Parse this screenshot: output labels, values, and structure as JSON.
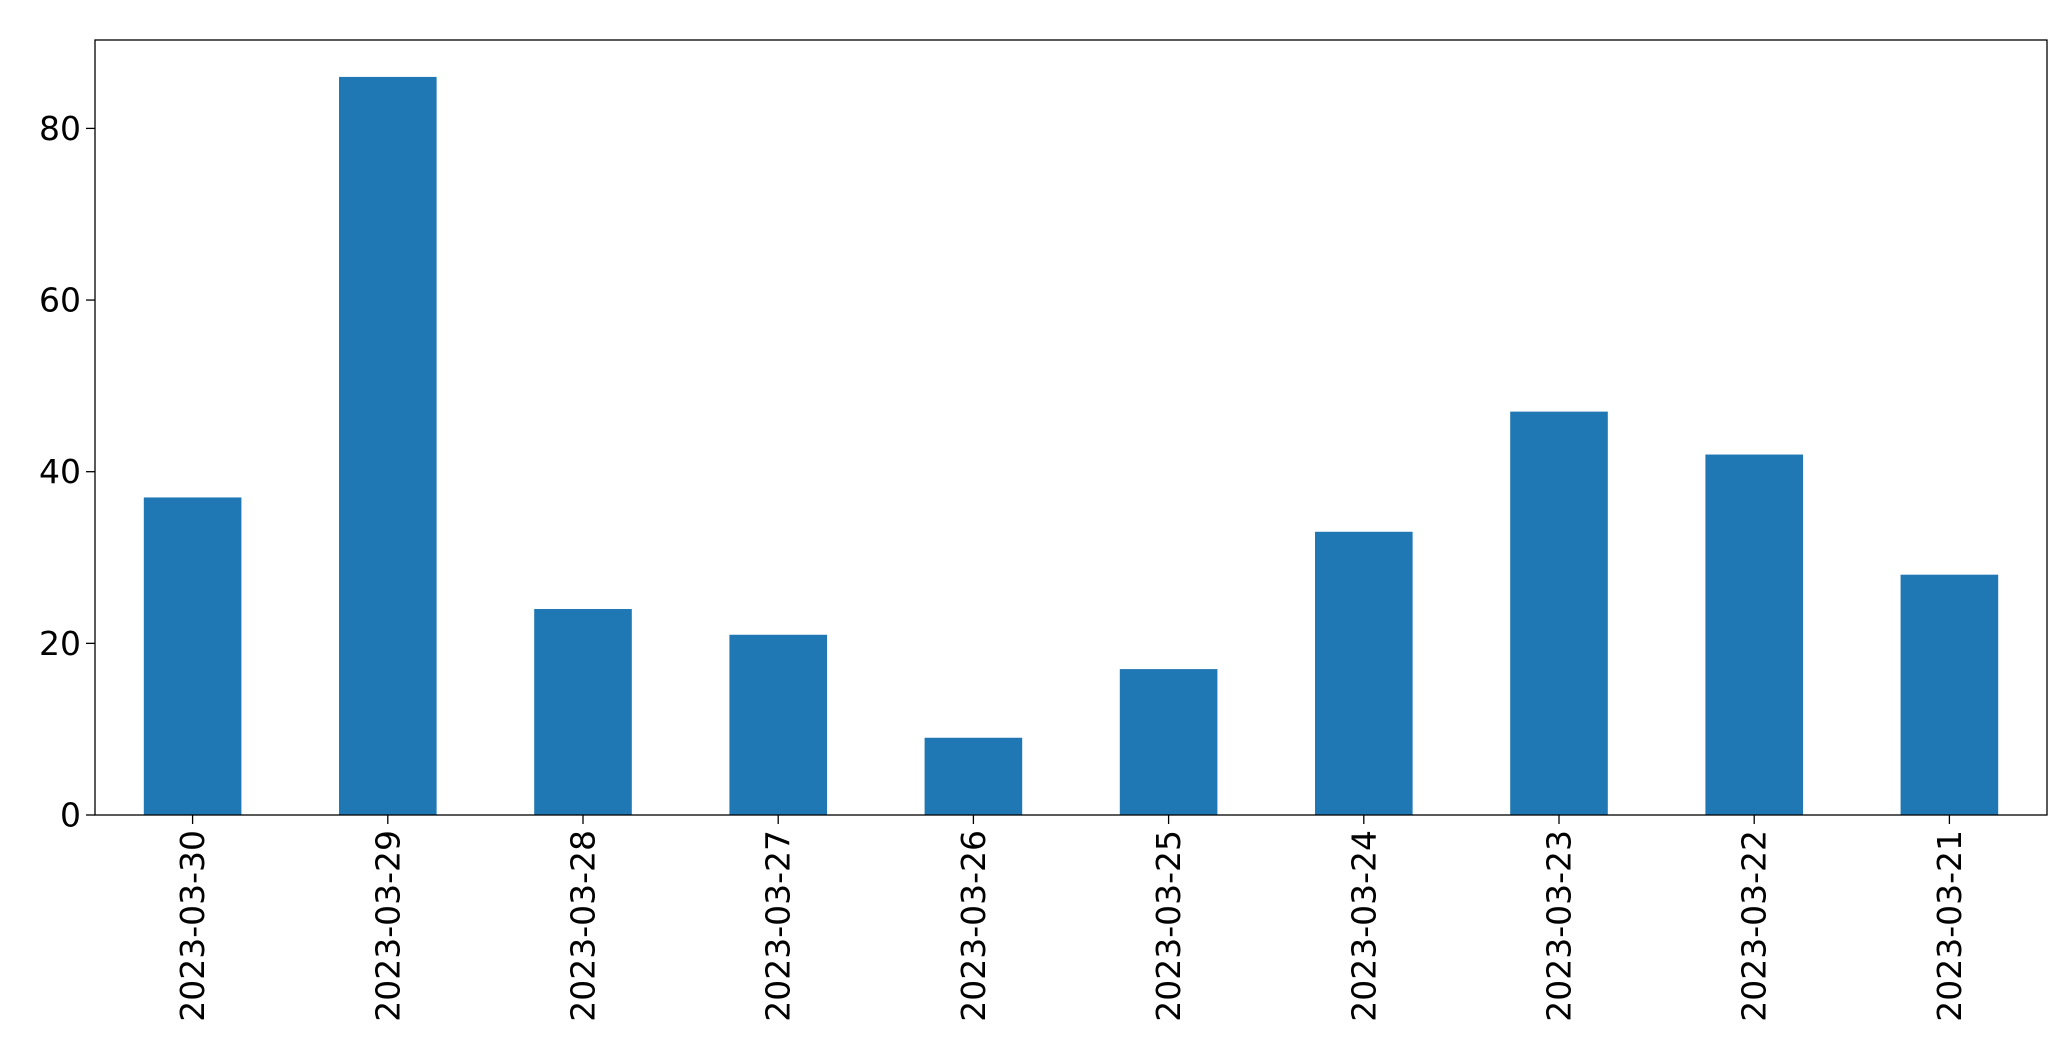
{
  "chart_data": {
    "type": "bar",
    "categories": [
      "2023-03-30",
      "2023-03-29",
      "2023-03-28",
      "2023-03-27",
      "2023-03-26",
      "2023-03-25",
      "2023-03-24",
      "2023-03-23",
      "2023-03-22",
      "2023-03-21"
    ],
    "values": [
      37,
      86,
      24,
      21,
      9,
      17,
      33,
      47,
      42,
      28
    ],
    "title": "",
    "xlabel": "",
    "ylabel": "",
    "ylim": [
      0,
      90.3
    ],
    "yticks": [
      0,
      20,
      40,
      60,
      80
    ],
    "grid": false,
    "legend": "none",
    "bar_color": "#1f77b4"
  }
}
